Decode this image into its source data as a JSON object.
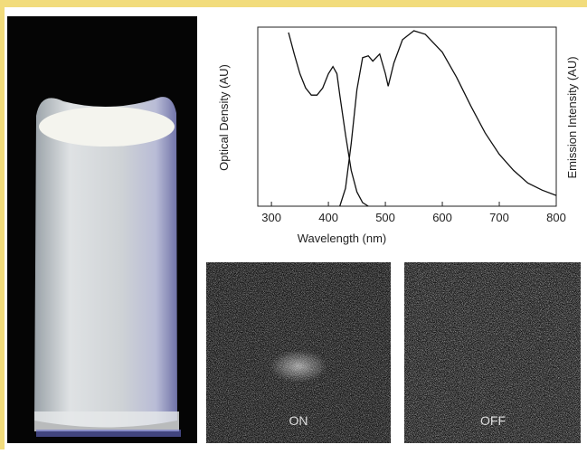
{
  "chart_data": {
    "type": "line",
    "xlabel": "Wavelength (nm)",
    "ylabel": "Optical Density (AU)",
    "y2label": "Emission Intensity (AU)",
    "xlim": [
      276,
      800
    ],
    "ylim": [
      0,
      1
    ],
    "xticks": [
      300,
      400,
      500,
      600,
      700,
      800
    ],
    "series": [
      {
        "color": "#111111",
        "x": [
          330,
          340,
          350,
          360,
          370,
          380,
          390,
          400,
          408,
          415,
          420,
          430,
          440,
          450,
          460,
          470
        ],
        "values": [
          0.97,
          0.85,
          0.74,
          0.66,
          0.62,
          0.62,
          0.66,
          0.74,
          0.78,
          0.74,
          0.62,
          0.4,
          0.2,
          0.08,
          0.02,
          0.0
        ]
      },
      {
        "color": "#111111",
        "axis": "y2",
        "x": [
          420,
          430,
          440,
          450,
          460,
          470,
          478,
          490,
          500,
          505,
          515,
          530,
          550,
          570,
          600,
          625,
          650,
          675,
          700,
          725,
          750,
          775,
          800
        ],
        "values": [
          0.0,
          0.1,
          0.35,
          0.65,
          0.83,
          0.84,
          0.81,
          0.85,
          0.74,
          0.67,
          0.8,
          0.93,
          0.98,
          0.96,
          0.86,
          0.72,
          0.56,
          0.41,
          0.29,
          0.2,
          0.13,
          0.09,
          0.06
        ]
      }
    ]
  },
  "images": {
    "labels": [
      "ON",
      "OFF"
    ]
  }
}
